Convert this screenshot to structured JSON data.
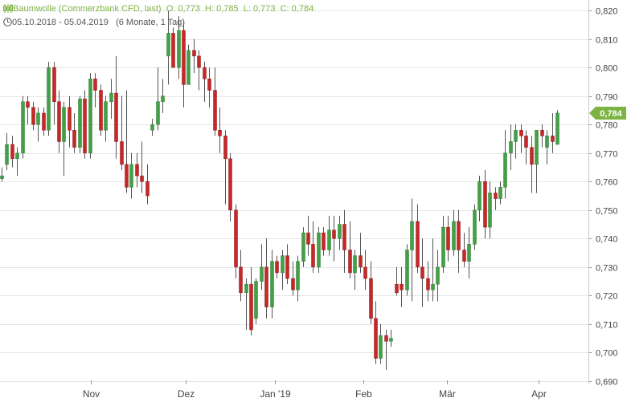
{
  "header": {
    "title": "Baumwolle (Commerzbank CFD, last)",
    "ohlc": "O: 0,773  H: 0,785  L: 0,773  C: 0,784",
    "range": "05.10.2018 - 05.04.2019",
    "period": "(6 Monate, 1 Tag)"
  },
  "colors": {
    "up": "#43a047",
    "down": "#c62828",
    "wick": "#555555",
    "grid": "#e6e6e6",
    "label_bg": "#7cb342"
  },
  "chart_data": {
    "type": "candlestick",
    "title": "Baumwolle (Commerzbank CFD, last)",
    "y_axis": {
      "position": "right",
      "range": [
        0.688,
        0.824
      ],
      "ticks": [
        "0,820",
        "0,810",
        "0,800",
        "0,790",
        "0,780",
        "0,770",
        "0,760",
        "0,750",
        "0,740",
        "0,730",
        "0,720",
        "0,710",
        "0,700",
        "0,690"
      ]
    },
    "x_axis": {
      "labels": [
        {
          "label": "Nov",
          "date": "2018-11-01"
        },
        {
          "label": "Dez",
          "date": "2018-12-03"
        },
        {
          "label": "Jan '19",
          "date": "2019-01-02"
        },
        {
          "label": "Feb",
          "date": "2019-02-01"
        },
        {
          "label": "Mär",
          "date": "2019-03-01"
        },
        {
          "label": "Apr",
          "date": "2019-04-01"
        }
      ]
    },
    "last_value_label": "0,784",
    "last_value": 0.784,
    "grid": true,
    "candles": [
      [
        0.761,
        0.765,
        0.76,
        0.762
      ],
      [
        0.766,
        0.777,
        0.764,
        0.773
      ],
      [
        0.773,
        0.776,
        0.765,
        0.768
      ],
      [
        0.768,
        0.772,
        0.762,
        0.77
      ],
      [
        0.77,
        0.79,
        0.768,
        0.788
      ],
      [
        0.788,
        0.79,
        0.78,
        0.786
      ],
      [
        0.786,
        0.788,
        0.778,
        0.78
      ],
      [
        0.78,
        0.786,
        0.774,
        0.784
      ],
      [
        0.784,
        0.786,
        0.776,
        0.778
      ],
      [
        0.778,
        0.802,
        0.776,
        0.8
      ],
      [
        0.8,
        0.802,
        0.78,
        0.788
      ],
      [
        0.788,
        0.792,
        0.77,
        0.774
      ],
      [
        0.774,
        0.788,
        0.762,
        0.786
      ],
      [
        0.786,
        0.79,
        0.772,
        0.778
      ],
      [
        0.778,
        0.784,
        0.77,
        0.772
      ],
      [
        0.772,
        0.79,
        0.77,
        0.789
      ],
      [
        0.789,
        0.792,
        0.768,
        0.77
      ],
      [
        0.77,
        0.798,
        0.768,
        0.796
      ],
      [
        0.796,
        0.798,
        0.786,
        0.792
      ],
      [
        0.792,
        0.794,
        0.776,
        0.778
      ],
      [
        0.778,
        0.79,
        0.774,
        0.788
      ],
      [
        0.788,
        0.796,
        0.782,
        0.791
      ],
      [
        0.791,
        0.804,
        0.768,
        0.774
      ],
      [
        0.774,
        0.79,
        0.764,
        0.766
      ],
      [
        0.766,
        0.792,
        0.756,
        0.758
      ],
      [
        0.758,
        0.77,
        0.754,
        0.766
      ],
      [
        0.766,
        0.77,
        0.758,
        0.762
      ],
      [
        0.762,
        0.774,
        0.756,
        0.76
      ],
      [
        0.76,
        0.766,
        0.752,
        0.755
      ],
      [
        0.778,
        0.782,
        0.776,
        0.78
      ],
      [
        0.78,
        0.8,
        0.778,
        0.788
      ],
      [
        0.788,
        0.796,
        0.784,
        0.79
      ],
      [
        0.804,
        0.82,
        0.794,
        0.812
      ],
      [
        0.812,
        0.814,
        0.8,
        0.8
      ],
      [
        0.8,
        0.818,
        0.796,
        0.813
      ],
      [
        0.813,
        0.816,
        0.786,
        0.794
      ],
      [
        0.794,
        0.808,
        0.794,
        0.806
      ],
      [
        0.806,
        0.81,
        0.798,
        0.804
      ],
      [
        0.804,
        0.806,
        0.792,
        0.8
      ],
      [
        0.8,
        0.802,
        0.788,
        0.796
      ],
      [
        0.796,
        0.8,
        0.786,
        0.792
      ],
      [
        0.792,
        0.8,
        0.776,
        0.778
      ],
      [
        0.778,
        0.786,
        0.77,
        0.776
      ],
      [
        0.776,
        0.778,
        0.752,
        0.768
      ],
      [
        0.768,
        0.77,
        0.746,
        0.75
      ],
      [
        0.75,
        0.752,
        0.726,
        0.73
      ],
      [
        0.73,
        0.736,
        0.718,
        0.721
      ],
      [
        0.721,
        0.726,
        0.708,
        0.724
      ],
      [
        0.724,
        0.73,
        0.706,
        0.708
      ],
      [
        0.712,
        0.726,
        0.71,
        0.725
      ],
      [
        0.725,
        0.738,
        0.722,
        0.73
      ],
      [
        0.73,
        0.74,
        0.712,
        0.716
      ],
      [
        0.716,
        0.736,
        0.712,
        0.732
      ],
      [
        0.732,
        0.734,
        0.726,
        0.728
      ],
      [
        0.728,
        0.736,
        0.722,
        0.734
      ],
      [
        0.734,
        0.738,
        0.724,
        0.726
      ],
      [
        0.726,
        0.732,
        0.72,
        0.722
      ],
      [
        0.722,
        0.734,
        0.718,
        0.732
      ],
      [
        0.732,
        0.744,
        0.73,
        0.742
      ],
      [
        0.742,
        0.748,
        0.734,
        0.738
      ],
      [
        0.738,
        0.746,
        0.728,
        0.73
      ],
      [
        0.73,
        0.744,
        0.728,
        0.742
      ],
      [
        0.742,
        0.744,
        0.734,
        0.736
      ],
      [
        0.736,
        0.748,
        0.734,
        0.743
      ],
      [
        0.743,
        0.748,
        0.732,
        0.74
      ],
      [
        0.74,
        0.748,
        0.736,
        0.745
      ],
      [
        0.745,
        0.75,
        0.728,
        0.736
      ],
      [
        0.736,
        0.746,
        0.726,
        0.728
      ],
      [
        0.728,
        0.736,
        0.722,
        0.734
      ],
      [
        0.734,
        0.742,
        0.728,
        0.73
      ],
      [
        0.73,
        0.736,
        0.722,
        0.726
      ],
      [
        0.726,
        0.732,
        0.71,
        0.712
      ],
      [
        0.712,
        0.718,
        0.696,
        0.698
      ],
      [
        0.698,
        0.71,
        0.696,
        0.706
      ],
      [
        0.706,
        0.708,
        0.694,
        0.704
      ],
      [
        0.704,
        0.708,
        0.702,
        0.705
      ],
      [
        0.724,
        0.73,
        0.72,
        0.721
      ],
      [
        0.724,
        0.73,
        0.716,
        0.722
      ],
      [
        0.722,
        0.738,
        0.72,
        0.736
      ],
      [
        0.736,
        0.754,
        0.718,
        0.746
      ],
      [
        0.746,
        0.752,
        0.728,
        0.73
      ],
      [
        0.73,
        0.74,
        0.716,
        0.726
      ],
      [
        0.726,
        0.732,
        0.718,
        0.722
      ],
      [
        0.722,
        0.74,
        0.718,
        0.724
      ],
      [
        0.724,
        0.736,
        0.718,
        0.73
      ],
      [
        0.73,
        0.748,
        0.728,
        0.744
      ],
      [
        0.744,
        0.748,
        0.732,
        0.736
      ],
      [
        0.736,
        0.75,
        0.734,
        0.746
      ],
      [
        0.746,
        0.75,
        0.728,
        0.736
      ],
      [
        0.736,
        0.742,
        0.73,
        0.732
      ],
      [
        0.732,
        0.744,
        0.726,
        0.738
      ],
      [
        0.738,
        0.752,
        0.736,
        0.75
      ],
      [
        0.75,
        0.762,
        0.746,
        0.76
      ],
      [
        0.76,
        0.764,
        0.74,
        0.744
      ],
      [
        0.744,
        0.76,
        0.74,
        0.756
      ],
      [
        0.756,
        0.758,
        0.75,
        0.754
      ],
      [
        0.754,
        0.76,
        0.752,
        0.758
      ],
      [
        0.758,
        0.778,
        0.754,
        0.77
      ],
      [
        0.77,
        0.78,
        0.764,
        0.774
      ],
      [
        0.774,
        0.78,
        0.768,
        0.778
      ],
      [
        0.778,
        0.78,
        0.77,
        0.776
      ],
      [
        0.776,
        0.778,
        0.766,
        0.772
      ],
      [
        0.772,
        0.776,
        0.756,
        0.766
      ],
      [
        0.766,
        0.778,
        0.756,
        0.778
      ],
      [
        0.778,
        0.78,
        0.772,
        0.776
      ],
      [
        0.772,
        0.778,
        0.766,
        0.776
      ],
      [
        0.776,
        0.784,
        0.77,
        0.774
      ],
      [
        0.773,
        0.785,
        0.773,
        0.784
      ]
    ]
  }
}
